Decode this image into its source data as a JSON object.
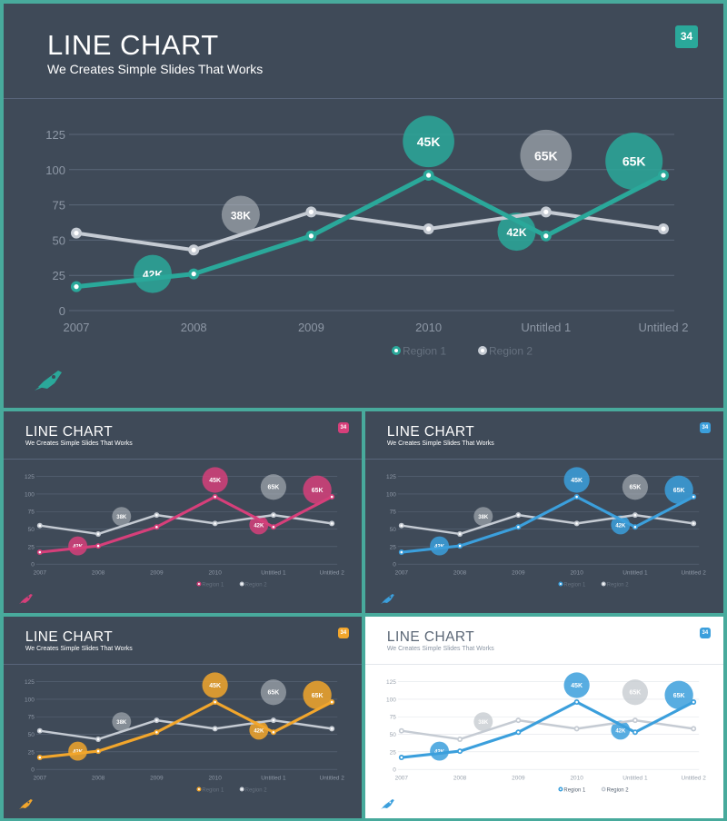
{
  "slide": {
    "title": "LINE CHART",
    "subtitle": "We Creates Simple Slides That Works",
    "page_number": "34"
  },
  "icons": {
    "logo": "rocket-icon"
  },
  "colors": {
    "frame": "#48aa9c",
    "background_dark": "#3f4a58",
    "background_light": "#ffffff",
    "region2_line": "#c5cbd3",
    "variants": [
      "#2aa89a",
      "#d63f7a",
      "#3b9fdc",
      "#f2a62c",
      "#3b9fdc"
    ]
  },
  "chart_data": [
    {
      "type": "line",
      "categories": [
        "2007",
        "2008",
        "2009",
        "2010",
        "Untitled 1",
        "Untitled 2"
      ],
      "yticks": [
        0,
        25,
        50,
        75,
        100,
        125
      ],
      "ylim": [
        0,
        125
      ],
      "grid": true,
      "legend_position": "bottom-center",
      "series": [
        {
          "name": "Region 1",
          "values": [
            17,
            26,
            53,
            96,
            53,
            96
          ]
        },
        {
          "name": "Region 2",
          "values": [
            55,
            43,
            70,
            58,
            70,
            58
          ]
        }
      ],
      "annotations": [
        {
          "text": "42K",
          "x": 0.65,
          "y": 26,
          "series": "Region 1"
        },
        {
          "text": "38K",
          "x": 1.4,
          "y": 68,
          "series": "Region 2"
        },
        {
          "text": "45K",
          "x": 3.0,
          "y": 120,
          "series": "Region 1"
        },
        {
          "text": "42K",
          "x": 3.75,
          "y": 56,
          "series": "Region 1"
        },
        {
          "text": "65K",
          "x": 4.0,
          "y": 110,
          "series": "Region 2"
        },
        {
          "text": "65K",
          "x": 4.75,
          "y": 106,
          "series": "Region 1"
        }
      ]
    }
  ]
}
